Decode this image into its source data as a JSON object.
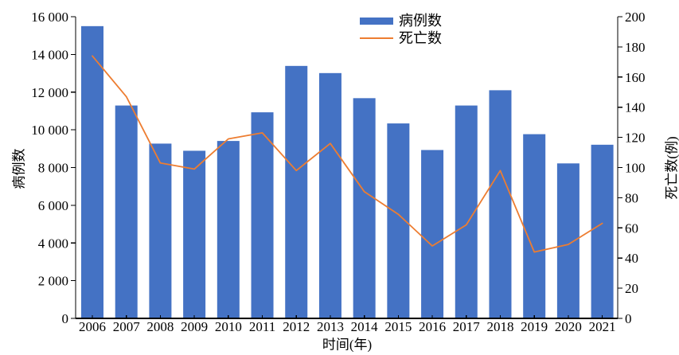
{
  "chart_data": {
    "type": "bar",
    "subtype": "bar+line dual-axis combo",
    "categories": [
      "2006",
      "2007",
      "2008",
      "2009",
      "2010",
      "2011",
      "2012",
      "2013",
      "2014",
      "2015",
      "2016",
      "2017",
      "2018",
      "2019",
      "2020",
      "2021"
    ],
    "series": [
      {
        "name": "病例数",
        "type": "bar",
        "axis": "left",
        "color": "#4472C4",
        "values": [
          15500,
          11290,
          9270,
          8890,
          9410,
          10930,
          13390,
          13010,
          11680,
          10340,
          8930,
          11290,
          12100,
          9770,
          8220,
          9210
        ]
      },
      {
        "name": "死亡数",
        "type": "line",
        "axis": "right",
        "color": "#ED7D31",
        "values": [
          174,
          147,
          103,
          99,
          119,
          123,
          98,
          116,
          84,
          69,
          48,
          62,
          98,
          44,
          49,
          63
        ]
      }
    ],
    "left_axis": {
      "label": "病例数",
      "min": 0,
      "max": 16000,
      "step": 2000,
      "tick_labels": [
        "0",
        "2 000",
        "4 000",
        "6 000",
        "8 000",
        "10 000",
        "12 000",
        "14 000",
        "16 000"
      ]
    },
    "right_axis": {
      "label": "死亡数(例)",
      "min": 0,
      "max": 200,
      "step": 20,
      "tick_labels": [
        "0",
        "20",
        "40",
        "60",
        "80",
        "100",
        "120",
        "140",
        "160",
        "180",
        "200"
      ]
    },
    "x_axis": {
      "label": "时间(年)"
    },
    "legend": {
      "position": "top-center",
      "entries": [
        {
          "label": "病例数",
          "swatch": "bar",
          "color": "#4472C4"
        },
        {
          "label": "死亡数",
          "swatch": "line",
          "color": "#ED7D31"
        }
      ]
    },
    "grid": false,
    "background": "#ffffff",
    "axis_color": "#000000",
    "text_color": "#000000"
  }
}
